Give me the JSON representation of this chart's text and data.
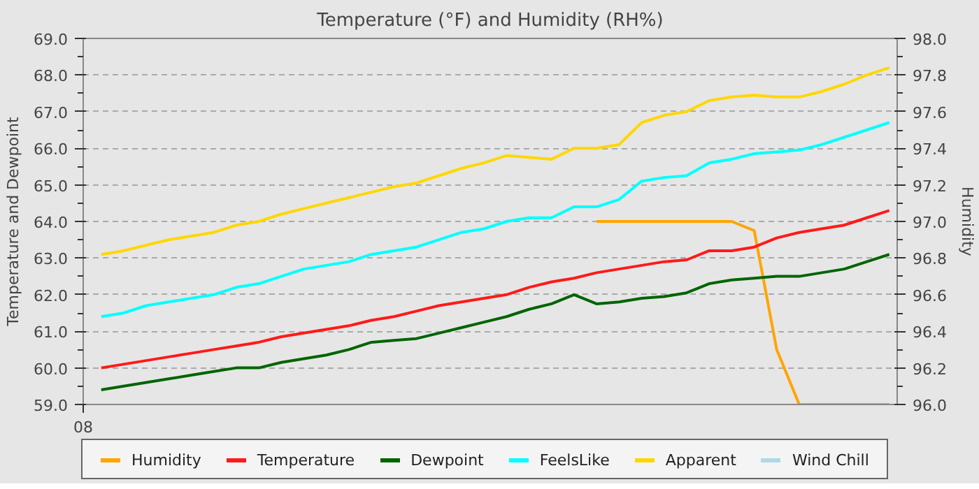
{
  "chart_data": {
    "type": "line",
    "title": "Temperature (°F) and Humidity (RH%)",
    "ylabel": "Temperature and Dewpoint",
    "y2label": "Humidity",
    "categories": [
      null,
      null,
      null,
      null,
      null,
      null,
      null,
      null,
      null,
      null,
      null,
      null,
      null,
      null,
      null,
      null,
      null,
      null,
      null,
      null,
      null,
      null,
      null,
      null,
      null,
      null,
      null,
      null,
      null,
      null,
      null,
      null,
      null,
      null,
      null,
      null
    ],
    "annotations": [
      "08"
    ],
    "ylim": [
      59,
      69
    ],
    "yticks": [
      {
        "value": 59,
        "label": "59.0"
      },
      {
        "value": 60,
        "label": "60.0"
      },
      {
        "value": 61,
        "label": "61.0"
      },
      {
        "value": 62,
        "label": "62.0"
      },
      {
        "value": 63,
        "label": "63.0"
      },
      {
        "value": 64,
        "label": "64.0"
      },
      {
        "value": 65,
        "label": "65.0"
      },
      {
        "value": 66,
        "label": "66.0"
      },
      {
        "value": 67,
        "label": "67.0"
      },
      {
        "value": 68,
        "label": "68.0"
      },
      {
        "value": 69,
        "label": "69.0"
      }
    ],
    "y2lim": [
      96,
      98
    ],
    "y2ticks": [
      {
        "value": 96,
        "label": "96.0"
      },
      96.2,
      96.4,
      96.6,
      96.8,
      {
        "value": 97,
        "label": "97.0"
      },
      97.2,
      97.4,
      97.6,
      97.8,
      {
        "value": 98,
        "label": "98.0"
      }
    ],
    "grid": "y",
    "legend": "bottom",
    "line_style": "solid",
    "series": [
      {
        "name": "Humidity",
        "color": "#ffa500",
        "axis": "y2",
        "values": [
          null,
          null,
          null,
          null,
          null,
          null,
          null,
          null,
          null,
          null,
          null,
          null,
          null,
          null,
          null,
          null,
          null,
          null,
          null,
          null,
          null,
          null,
          97.0,
          97.0,
          97.0,
          97.0,
          97.0,
          97.0,
          97.0,
          96.95,
          96.3,
          96.0,
          96.0,
          96.0,
          96.0,
          96.0
        ]
      },
      {
        "name": "Temperature",
        "color": "#ff1a1a",
        "values": [
          60.0,
          60.1,
          60.2,
          60.3,
          60.4,
          60.5,
          60.6,
          60.7,
          60.85,
          60.95,
          61.05,
          61.15,
          61.3,
          61.4,
          61.55,
          61.7,
          61.8,
          61.9,
          62.0,
          62.2,
          62.35,
          62.45,
          62.6,
          62.7,
          62.8,
          62.9,
          62.95,
          63.2,
          63.2,
          63.3,
          63.55,
          63.7,
          63.8,
          63.9,
          64.1,
          64.3
        ]
      },
      {
        "name": "Dewpoint",
        "color": "#006400",
        "values": [
          59.4,
          59.5,
          59.6,
          59.7,
          59.8,
          59.9,
          60.0,
          60.0,
          60.15,
          60.25,
          60.35,
          60.5,
          60.7,
          60.75,
          60.8,
          60.95,
          61.1,
          61.25,
          61.4,
          61.6,
          61.75,
          62.0,
          61.75,
          61.8,
          61.9,
          61.95,
          62.05,
          62.3,
          62.4,
          62.45,
          62.5,
          62.5,
          62.6,
          62.7,
          62.9,
          63.1
        ]
      },
      {
        "name": "FeelsLike",
        "color": "#00ffff",
        "values": [
          61.4,
          61.5,
          61.7,
          61.8,
          61.9,
          62.0,
          62.2,
          62.3,
          62.5,
          62.7,
          62.8,
          62.9,
          63.1,
          63.2,
          63.3,
          63.5,
          63.7,
          63.8,
          64.0,
          64.1,
          64.1,
          64.4,
          64.4,
          64.6,
          65.1,
          65.2,
          65.25,
          65.6,
          65.7,
          65.85,
          65.9,
          65.95,
          66.1,
          66.3,
          66.5,
          66.7
        ]
      },
      {
        "name": "Apparent",
        "color": "#ffd700",
        "values": [
          63.1,
          63.2,
          63.35,
          63.5,
          63.6,
          63.7,
          63.9,
          64.0,
          64.2,
          64.35,
          64.5,
          64.65,
          64.8,
          64.95,
          65.05,
          65.25,
          65.45,
          65.6,
          65.8,
          65.75,
          65.7,
          66.0,
          66.0,
          66.1,
          66.7,
          66.9,
          67.0,
          67.3,
          67.4,
          67.45,
          67.4,
          67.4,
          67.55,
          67.75,
          68.0,
          68.2
        ]
      },
      {
        "name": "Wind Chill",
        "color": "#add8e6",
        "values": [
          null,
          null,
          null,
          null,
          null,
          null,
          null,
          null,
          null,
          null,
          null,
          null,
          null,
          null,
          null,
          null,
          null,
          null,
          null,
          null,
          null,
          null,
          null,
          null,
          null,
          null,
          null,
          null,
          null,
          null,
          null,
          null,
          null,
          null,
          null,
          null
        ]
      }
    ]
  }
}
